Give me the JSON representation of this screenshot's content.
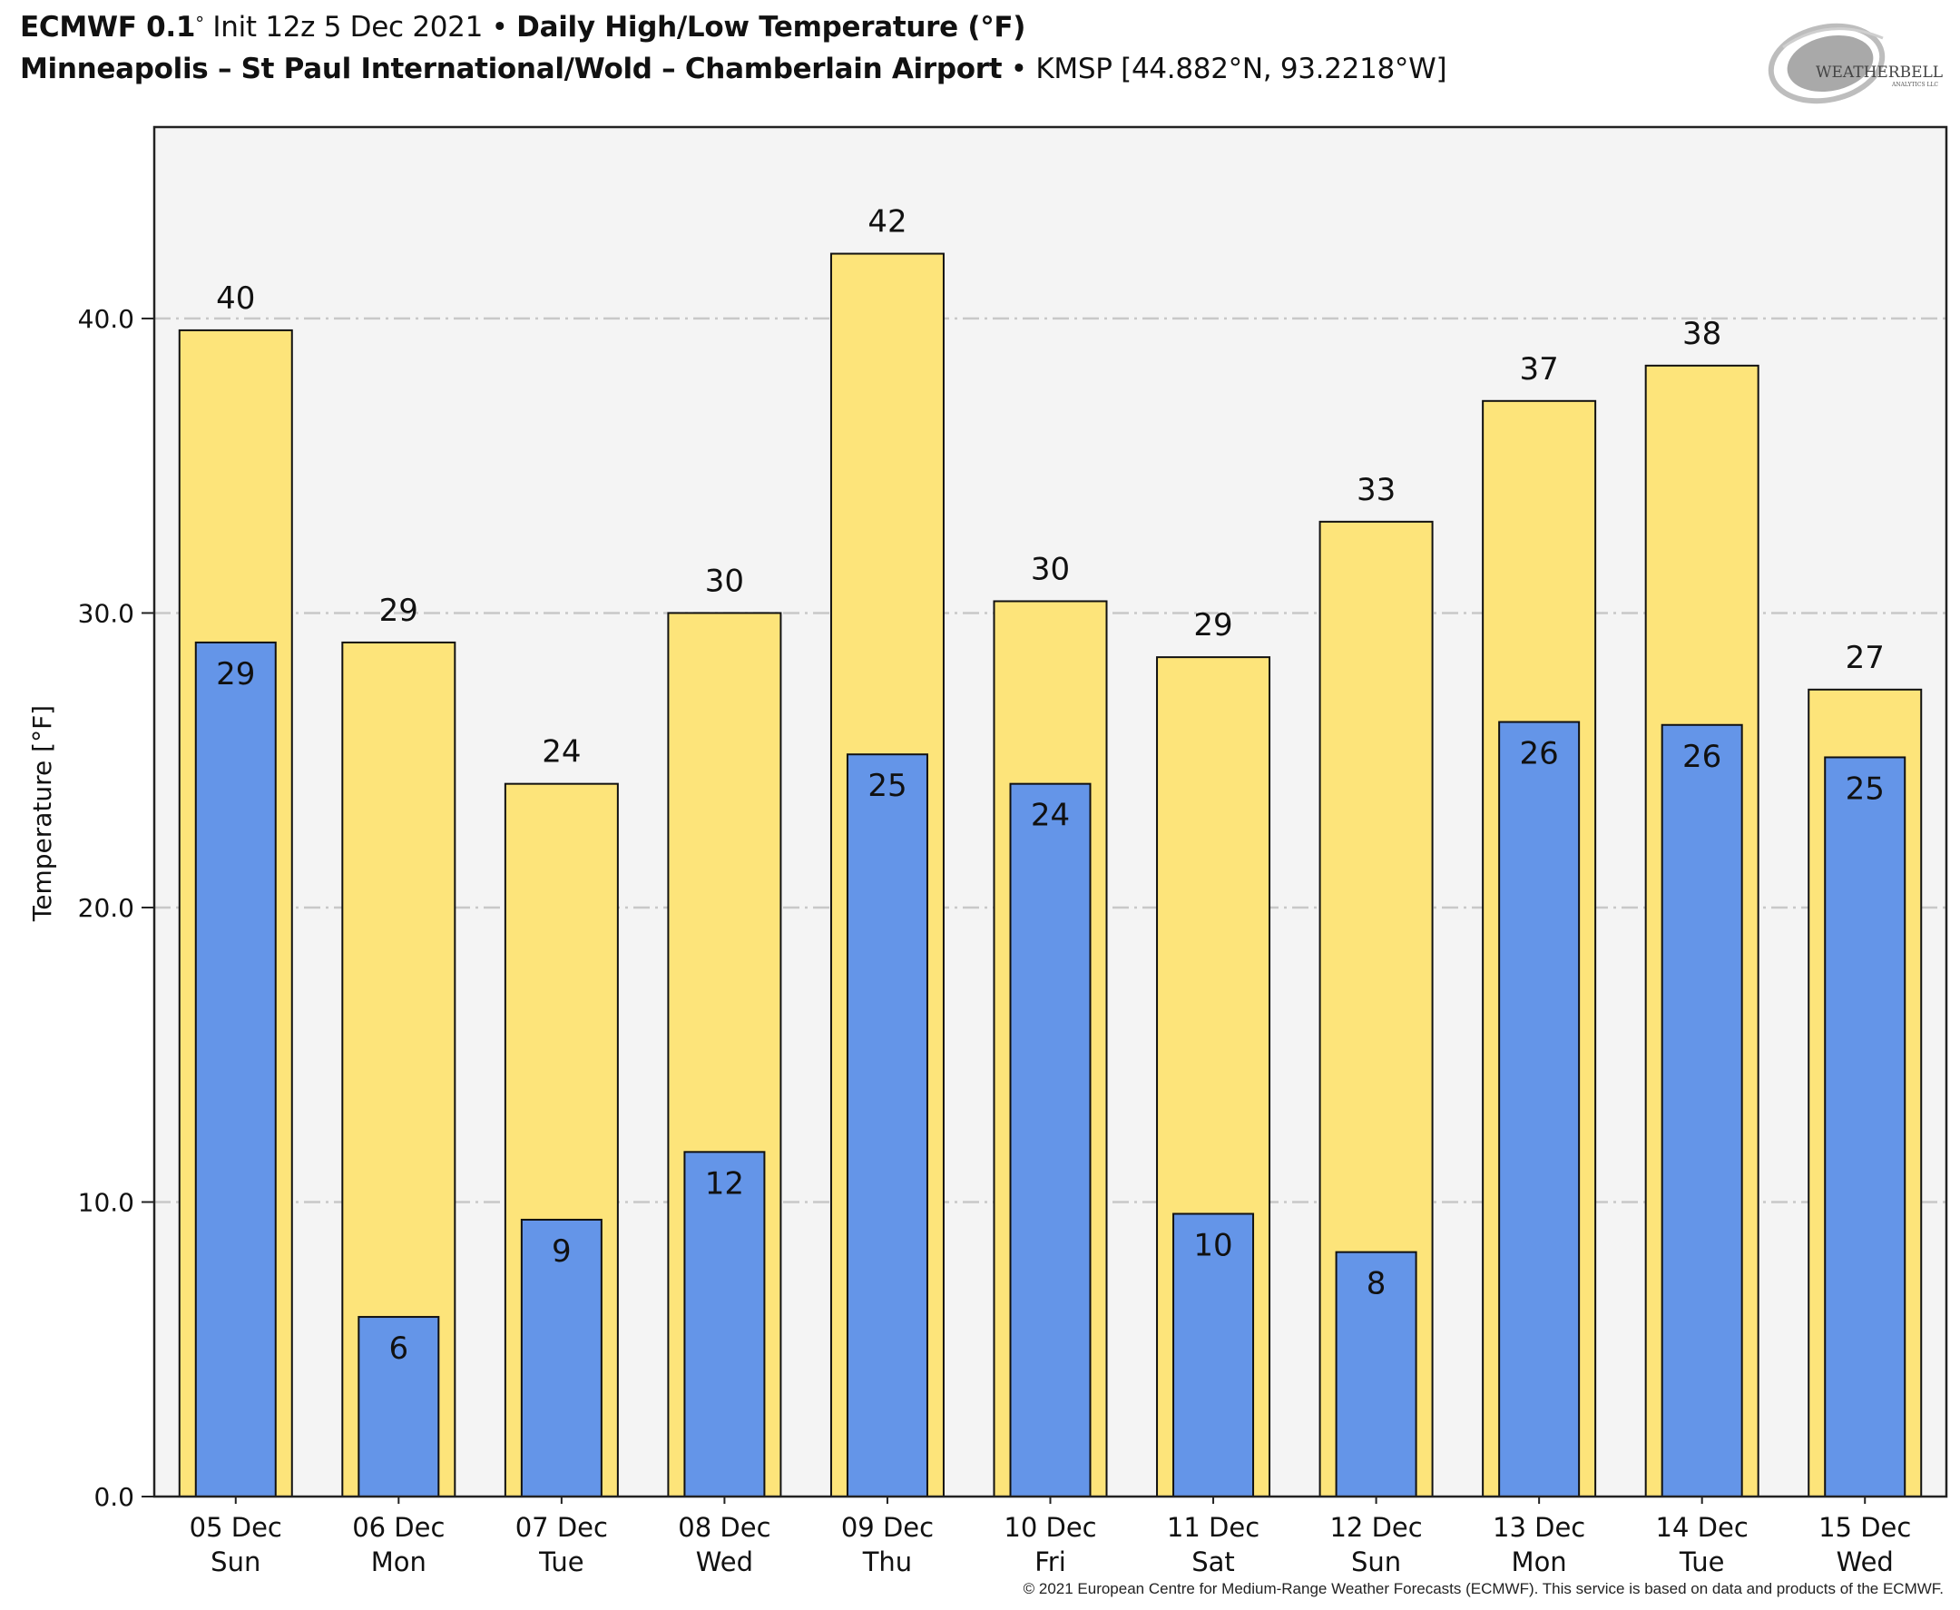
{
  "header": {
    "model": "ECMWF 0.1",
    "degree_symbol": "°",
    "init": "Init 12z 5 Dec 2021",
    "bullet": "•",
    "product": "Daily High/Low Temperature (°F)",
    "station_name": "Minneapolis – St Paul International/Wold – Chamberlain Airport",
    "station_id": "KMSP [44.882°N, 93.2218°W]"
  },
  "logo": {
    "text_main": "WEATHERBELL",
    "text_sub": "ANALYTICS LLC"
  },
  "credit": "© 2021 European Centre for Medium-Range Weather Forecasts (ECMWF). This service is based on data and products of the ECMWF.",
  "colors": {
    "high_bar": "#fde47a",
    "low_bar": "#6495e8",
    "plot_bg": "#f4f4f4",
    "grid": "#c8c8c8"
  },
  "chart_data": {
    "type": "bar",
    "title": "Daily High/Low Temperature (°F)",
    "xlabel": "",
    "ylabel": "Temperature [°F]",
    "ylim": [
      0,
      46.5
    ],
    "yticks": [
      0,
      10,
      20,
      30,
      40
    ],
    "ytick_labels": [
      "0.0",
      "10.0",
      "20.0",
      "30.0",
      "40.0"
    ],
    "grid": true,
    "categories": [
      "05 Dec",
      "06 Dec",
      "07 Dec",
      "08 Dec",
      "09 Dec",
      "10 Dec",
      "11 Dec",
      "12 Dec",
      "13 Dec",
      "14 Dec",
      "15 Dec"
    ],
    "weekdays": [
      "Sun",
      "Mon",
      "Tue",
      "Wed",
      "Thu",
      "Fri",
      "Sat",
      "Sun",
      "Mon",
      "Tue",
      "Wed"
    ],
    "series": [
      {
        "name": "High",
        "values": [
          39.6,
          29.0,
          24.2,
          30.0,
          42.2,
          30.4,
          28.5,
          33.1,
          37.2,
          38.4,
          27.4
        ],
        "labels": [
          "40",
          "29",
          "24",
          "30",
          "42",
          "30",
          "29",
          "33",
          "37",
          "38",
          "27"
        ]
      },
      {
        "name": "Low",
        "values": [
          29.0,
          6.1,
          9.4,
          11.7,
          25.2,
          24.2,
          9.6,
          8.3,
          26.3,
          26.2,
          25.1
        ],
        "labels": [
          "29",
          "6",
          "9",
          "12",
          "25",
          "24",
          "10",
          "8",
          "26",
          "26",
          "25"
        ]
      }
    ]
  }
}
